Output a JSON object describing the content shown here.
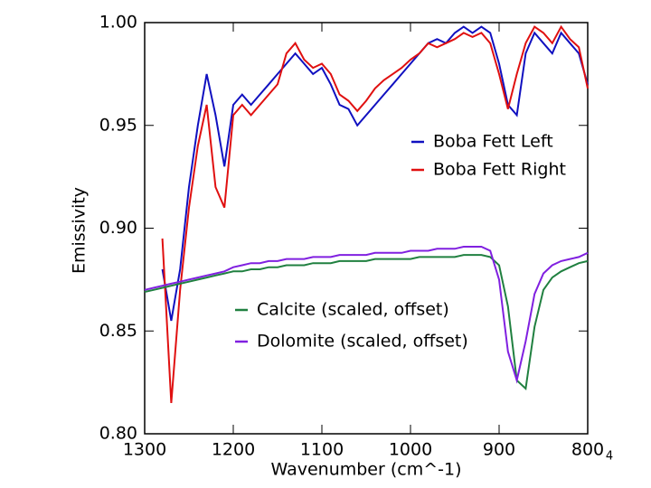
{
  "chart_data": {
    "type": "line",
    "xlabel": "Wavenumber (cm^-1)",
    "ylabel": "Emissivity",
    "x": [
      1300,
      1290,
      1280,
      1270,
      1260,
      1250,
      1240,
      1230,
      1220,
      1210,
      1200,
      1190,
      1180,
      1170,
      1160,
      1150,
      1140,
      1130,
      1120,
      1110,
      1100,
      1090,
      1080,
      1070,
      1060,
      1050,
      1040,
      1030,
      1020,
      1010,
      1000,
      990,
      980,
      970,
      960,
      950,
      940,
      930,
      920,
      910,
      900,
      890,
      880,
      870,
      860,
      850,
      840,
      830,
      820,
      810,
      800
    ],
    "xlim": [
      1300,
      800
    ],
    "xticks": [
      1300,
      1200,
      1100,
      1000,
      900,
      800
    ],
    "ylim": [
      0.8,
      1.0
    ],
    "yticks": [
      {
        "value": 0.8,
        "label": "0.80"
      },
      0.85,
      {
        "value": 0.9,
        "label": "0.90"
      },
      0.95,
      {
        "value": 1.0,
        "label": "1.00"
      }
    ],
    "series": [
      {
        "name": "Boba Fett Left",
        "color": "#1010c0",
        "values": [
          null,
          null,
          0.88,
          0.855,
          0.88,
          0.92,
          0.95,
          0.975,
          0.955,
          0.93,
          0.96,
          0.965,
          0.96,
          0.965,
          0.97,
          0.975,
          0.98,
          0.985,
          0.98,
          0.975,
          0.978,
          0.97,
          0.96,
          0.958,
          0.95,
          0.955,
          0.96,
          0.965,
          0.97,
          0.975,
          0.98,
          0.985,
          0.99,
          0.992,
          0.99,
          0.995,
          0.998,
          0.995,
          0.998,
          0.995,
          0.98,
          0.96,
          0.955,
          0.985,
          0.995,
          0.99,
          0.985,
          0.995,
          0.99,
          0.985,
          0.97
        ]
      },
      {
        "name": "Boba Fett Right",
        "color": "#e01010",
        "values": [
          null,
          null,
          0.895,
          0.815,
          0.87,
          0.91,
          0.94,
          0.96,
          0.92,
          0.91,
          0.955,
          0.96,
          0.955,
          0.96,
          0.965,
          0.97,
          0.985,
          0.99,
          0.982,
          0.978,
          0.98,
          0.975,
          0.965,
          0.962,
          0.957,
          0.962,
          0.968,
          0.972,
          0.975,
          0.978,
          0.982,
          0.985,
          0.99,
          0.988,
          0.99,
          0.992,
          0.995,
          0.993,
          0.995,
          0.99,
          0.975,
          0.958,
          0.975,
          0.99,
          0.998,
          0.995,
          0.99,
          0.998,
          0.992,
          0.988,
          0.968
        ]
      },
      {
        "name": "Calcite (scaled, offset)",
        "color": "#208040",
        "values": [
          0.869,
          0.87,
          0.871,
          0.872,
          0.873,
          0.874,
          0.875,
          0.876,
          0.877,
          0.878,
          0.879,
          0.879,
          0.88,
          0.88,
          0.881,
          0.881,
          0.882,
          0.882,
          0.882,
          0.883,
          0.883,
          0.883,
          0.884,
          0.884,
          0.884,
          0.884,
          0.885,
          0.885,
          0.885,
          0.885,
          0.885,
          0.886,
          0.886,
          0.886,
          0.886,
          0.886,
          0.887,
          0.887,
          0.887,
          0.886,
          0.882,
          0.862,
          0.826,
          0.822,
          0.852,
          0.87,
          0.876,
          0.879,
          0.881,
          0.883,
          0.884
        ]
      },
      {
        "name": "Dolomite (scaled, offset)",
        "color": "#8020e0",
        "values": [
          0.87,
          0.871,
          0.872,
          0.873,
          0.874,
          0.875,
          0.876,
          0.877,
          0.878,
          0.879,
          0.881,
          0.882,
          0.883,
          0.883,
          0.884,
          0.884,
          0.885,
          0.885,
          0.885,
          0.886,
          0.886,
          0.886,
          0.887,
          0.887,
          0.887,
          0.887,
          0.888,
          0.888,
          0.888,
          0.888,
          0.889,
          0.889,
          0.889,
          0.89,
          0.89,
          0.89,
          0.891,
          0.891,
          0.891,
          0.889,
          0.875,
          0.84,
          0.826,
          0.845,
          0.868,
          0.878,
          0.882,
          0.884,
          0.885,
          0.886,
          0.888
        ]
      }
    ]
  },
  "page_number": "4"
}
